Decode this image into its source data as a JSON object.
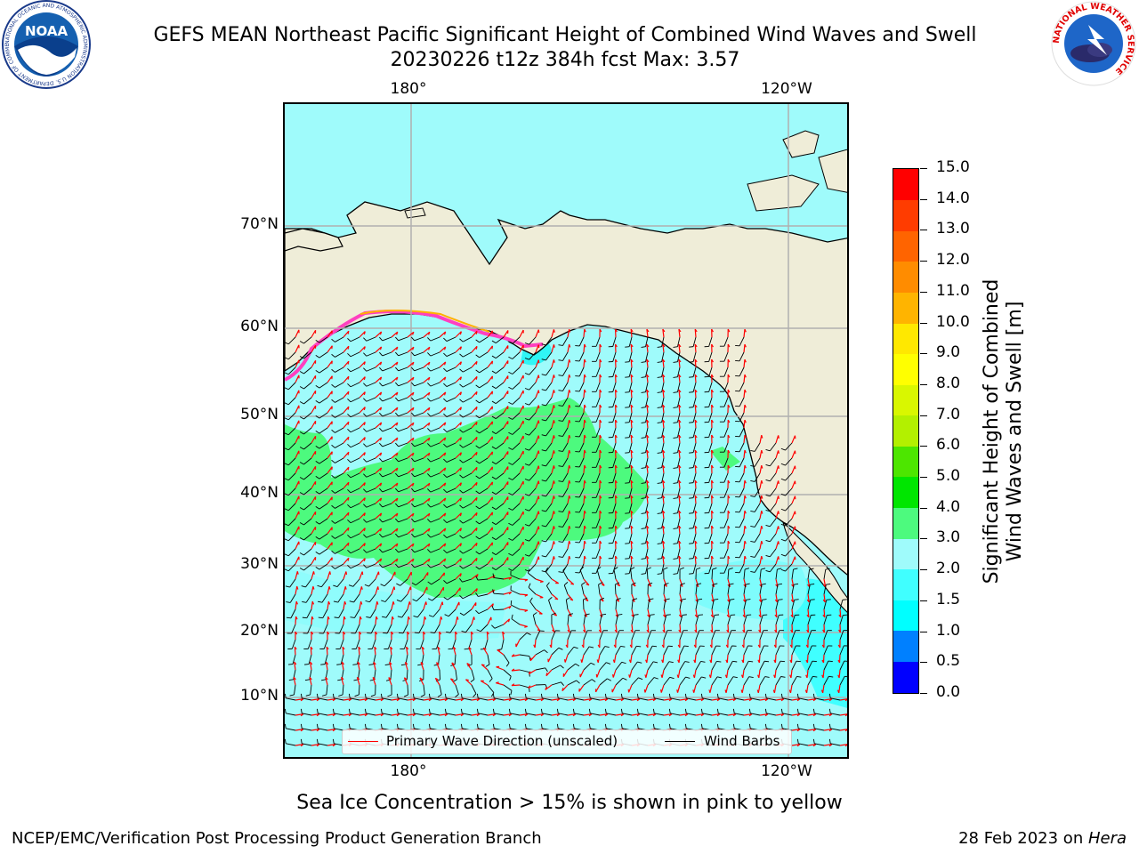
{
  "header": {
    "title_line1": "GEFS MEAN Northeast Pacific Significant Height of Combined Wind Waves and Swell",
    "title_line2": "20230226 t12z 384h fcst   Max: 3.57"
  },
  "logos": {
    "noaa_text": "NOAA",
    "noaa_ring_text": "NATIONAL OCEANIC AND ATMOSPHERIC ADMINISTRATION U.S. DEPARTMENT OF COMMERCE",
    "nws_ring_text": "NATIONAL WEATHER SERVICE"
  },
  "map": {
    "lon_labels_top": [
      "180°",
      "120°W"
    ],
    "lon_labels_bottom": [
      "180°",
      "120°W"
    ],
    "lat_labels": [
      "70°N",
      "60°N",
      "50°N",
      "40°N",
      "30°N",
      "20°N",
      "10°N"
    ],
    "legend": {
      "wave_label": "Primary Wave Direction (unscaled)",
      "wind_label": "Wind Barbs",
      "wave_color": "#ff0000",
      "wind_color": "#000000"
    },
    "land_color": "#efedd8",
    "ice_note": "Sea Ice Concentration > 15% is shown in pink to yellow"
  },
  "colorbar": {
    "title": "Significant Height of Combined Wind Waves and Swell [m]",
    "title_line1": "Significant Height of Combined",
    "title_line2": "Wind Waves and Swell [m]",
    "tick_labels": [
      "0.0",
      "0.5",
      "1.0",
      "1.5",
      "2.0",
      "3.0",
      "4.0",
      "5.0",
      "6.0",
      "7.0",
      "8.0",
      "9.0",
      "10.0",
      "11.0",
      "12.0",
      "13.0",
      "14.0",
      "15.0"
    ],
    "colors": [
      "#0000ff",
      "#0080ff",
      "#00ffff",
      "#40ffff",
      "#9ffbfb",
      "#4dfa7e",
      "#00e600",
      "#4de600",
      "#b3f000",
      "#d9f700",
      "#ffff00",
      "#ffe800",
      "#ffb400",
      "#ff8c00",
      "#ff6400",
      "#ff3c00",
      "#ff0000"
    ]
  },
  "footer": {
    "left": "NCEP/EMC/Verification Post Processing Product Generation Branch",
    "right_prefix": "28 Feb 2023 on ",
    "right_italic": "Hera"
  }
}
